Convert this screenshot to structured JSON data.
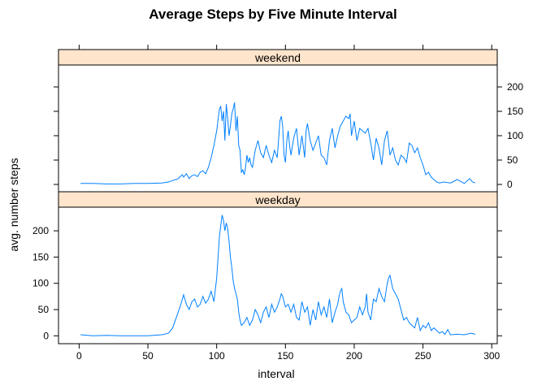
{
  "chart_data": {
    "type": "line",
    "title": "Average Steps by Five Minute Interval",
    "xlabel": "interval",
    "ylabel": "avg. number steps",
    "xlim": [
      -15,
      304
    ],
    "ylim": [
      -15,
      245
    ],
    "xticks": [
      0,
      50,
      100,
      150,
      200,
      250,
      300
    ],
    "yticks": [
      0,
      50,
      100,
      150,
      200
    ],
    "strip_color": "#FFE5CC",
    "line_color": "#0080FF",
    "grid": false,
    "legend": "none",
    "panels": [
      {
        "name": "weekend",
        "x": [
          1,
          10,
          20,
          30,
          40,
          50,
          60,
          65,
          68,
          70,
          72,
          75,
          76,
          78,
          80,
          82,
          84,
          86,
          88,
          90,
          92,
          94,
          96,
          98,
          100,
          102,
          103,
          104,
          105,
          106,
          107,
          108,
          109,
          110,
          111,
          112,
          113,
          114,
          115,
          116,
          117,
          118,
          119,
          120,
          121,
          122,
          123,
          124,
          125,
          126,
          128,
          130,
          132,
          134,
          136,
          138,
          140,
          142,
          144,
          145,
          146,
          147,
          148,
          149,
          150,
          151,
          152,
          153,
          154,
          156,
          158,
          160,
          162,
          164,
          165,
          166,
          168,
          170,
          172,
          174,
          176,
          178,
          180,
          182,
          184,
          186,
          188,
          190,
          192,
          194,
          196,
          197,
          198,
          200,
          202,
          204,
          206,
          208,
          210,
          212,
          214,
          216,
          218,
          220,
          222,
          224,
          226,
          228,
          230,
          232,
          234,
          236,
          238,
          240,
          242,
          244,
          246,
          248,
          250,
          252,
          254,
          256,
          258,
          260,
          262,
          265,
          270,
          275,
          280,
          284,
          286,
          288
        ],
        "y": [
          2,
          2,
          1,
          1,
          2,
          2,
          3,
          5,
          8,
          10,
          12,
          20,
          15,
          22,
          12,
          18,
          20,
          16,
          25,
          28,
          22,
          35,
          55,
          80,
          110,
          155,
          160,
          130,
          150,
          90,
          165,
          135,
          100,
          120,
          145,
          155,
          168,
          110,
          140,
          80,
          70,
          25,
          30,
          20,
          35,
          60,
          45,
          55,
          40,
          35,
          70,
          90,
          65,
          55,
          80,
          60,
          45,
          70,
          55,
          90,
          130,
          140,
          120,
          60,
          45,
          90,
          110,
          80,
          60,
          95,
          115,
          60,
          100,
          55,
          110,
          125,
          90,
          70,
          85,
          100,
          60,
          55,
          40,
          90,
          115,
          75,
          100,
          120,
          130,
          140,
          135,
          145,
          100,
          130,
          90,
          115,
          110,
          105,
          115,
          85,
          50,
          95,
          75,
          40,
          90,
          110,
          60,
          75,
          50,
          40,
          60,
          55,
          45,
          85,
          80,
          65,
          75,
          55,
          40,
          20,
          25,
          15,
          10,
          5,
          3,
          5,
          3,
          10,
          2,
          12,
          5,
          3
        ]
      },
      {
        "name": "weekday",
        "x": [
          1,
          10,
          20,
          30,
          40,
          50,
          60,
          65,
          68,
          70,
          72,
          74,
          75,
          76,
          78,
          80,
          82,
          84,
          86,
          88,
          90,
          92,
          94,
          96,
          98,
          100,
          101,
          102,
          103,
          104,
          105,
          106,
          107,
          108,
          109,
          110,
          111,
          112,
          113,
          114,
          115,
          116,
          117,
          118,
          120,
          122,
          124,
          126,
          128,
          130,
          132,
          134,
          136,
          138,
          140,
          142,
          144,
          146,
          147,
          148,
          150,
          152,
          154,
          156,
          158,
          160,
          162,
          164,
          166,
          168,
          170,
          172,
          174,
          176,
          178,
          180,
          182,
          184,
          186,
          188,
          189,
          190,
          191,
          192,
          194,
          196,
          198,
          200,
          202,
          204,
          206,
          208,
          209,
          210,
          212,
          214,
          216,
          218,
          220,
          222,
          224,
          225,
          226,
          228,
          230,
          232,
          234,
          236,
          238,
          240,
          242,
          244,
          246,
          248,
          250,
          252,
          254,
          256,
          258,
          260,
          262,
          264,
          266,
          268,
          270,
          275,
          280,
          285,
          288
        ],
        "y": [
          2,
          0,
          1,
          0,
          0,
          0,
          2,
          5,
          15,
          30,
          45,
          60,
          70,
          78,
          60,
          50,
          65,
          70,
          55,
          60,
          75,
          62,
          70,
          85,
          65,
          110,
          150,
          190,
          210,
          230,
          220,
          200,
          215,
          205,
          180,
          150,
          130,
          105,
          90,
          80,
          70,
          45,
          30,
          20,
          25,
          35,
          20,
          30,
          50,
          40,
          25,
          45,
          55,
          35,
          60,
          45,
          55,
          70,
          80,
          75,
          55,
          60,
          45,
          60,
          35,
          30,
          65,
          45,
          55,
          20,
          50,
          30,
          65,
          40,
          55,
          35,
          70,
          25,
          45,
          60,
          75,
          85,
          90,
          65,
          45,
          40,
          25,
          30,
          35,
          55,
          40,
          55,
          80,
          45,
          30,
          70,
          65,
          90,
          75,
          65,
          100,
          110,
          115,
          90,
          80,
          70,
          50,
          30,
          35,
          25,
          20,
          15,
          35,
          10,
          20,
          15,
          25,
          10,
          15,
          10,
          5,
          8,
          3,
          12,
          2,
          3,
          2,
          5,
          3
        ]
      }
    ]
  }
}
